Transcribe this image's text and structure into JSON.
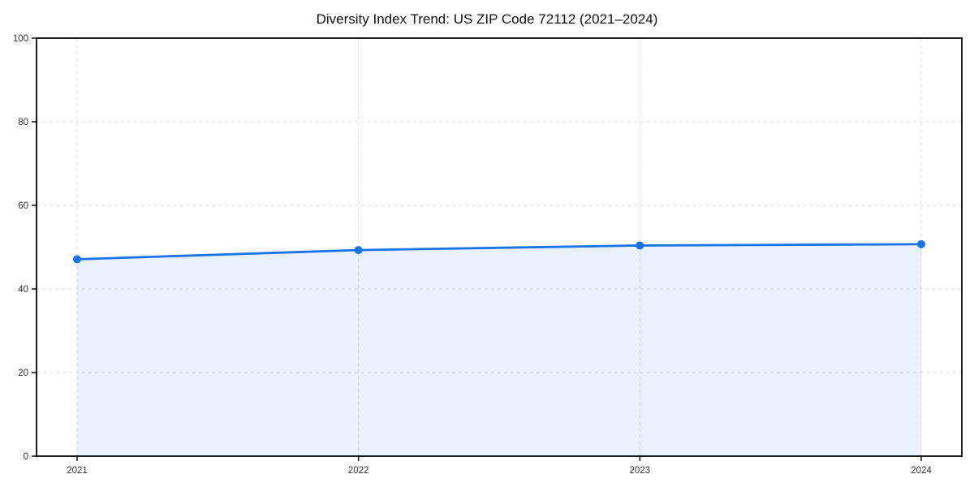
{
  "chart_data": {
    "type": "line",
    "title": "Diversity Index Trend: US ZIP Code 72112 (2021–2024)",
    "x": [
      2021,
      2022,
      2023,
      2024
    ],
    "xtick_labels": [
      "2021",
      "2022",
      "2023",
      "2024"
    ],
    "series": [
      {
        "name": "Diversity Index",
        "values": [
          47.1,
          49.3,
          50.4,
          50.7
        ]
      }
    ],
    "xlabel": "",
    "ylabel": "",
    "ylim": [
      0,
      100
    ],
    "yticks": [
      0,
      20,
      40,
      60,
      80,
      100
    ],
    "grid": "dashed-both-axes",
    "legend": "none",
    "area_fill": true,
    "colors": {
      "line": "#1a73e8",
      "marker": "#1a73e8",
      "area": "rgba(26,115,232,0.10)",
      "grid": "#dcdcdc",
      "frame": "#000000",
      "tick_text": "#333333",
      "title_text": "#111111"
    }
  }
}
